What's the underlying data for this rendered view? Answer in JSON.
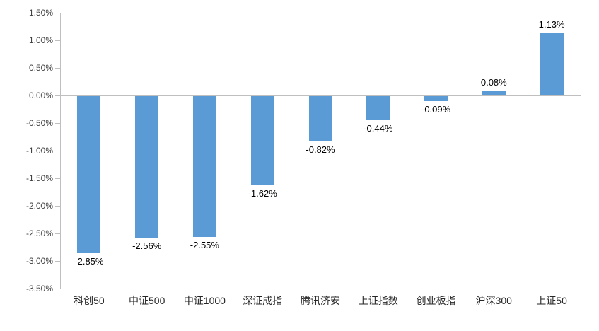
{
  "chart_data": {
    "type": "bar",
    "title": "",
    "xlabel": "",
    "ylabel": "",
    "categories": [
      "科创50",
      "中证500",
      "中证1000",
      "深证成指",
      "腾讯济安",
      "上证指数",
      "创业板指",
      "沪深300",
      "上证50"
    ],
    "values": [
      -2.85,
      -2.56,
      -2.55,
      -1.62,
      -0.82,
      -0.44,
      -0.09,
      0.08,
      1.13
    ],
    "data_labels": [
      "-2.85%",
      "-2.56%",
      "-2.55%",
      "-1.62%",
      "-0.82%",
      "-0.44%",
      "-0.09%",
      "0.08%",
      "1.13%"
    ],
    "y_tick_labels": [
      "1.50%",
      "1.00%",
      "0.50%",
      "0.00%",
      "-0.50%",
      "-1.00%",
      "-1.50%",
      "-2.00%",
      "-2.50%",
      "-3.00%",
      "-3.50%"
    ],
    "y_tick_values": [
      1.5,
      1.0,
      0.5,
      0.0,
      -0.5,
      -1.0,
      -1.5,
      -2.0,
      -2.5,
      -3.0,
      -3.5
    ],
    "ylim": [
      -3.5,
      1.5
    ],
    "grid": false,
    "legend_position": "none",
    "colors": {
      "bar": "#5B9BD5",
      "axis_line": "#BFBFBF",
      "tick_text": "#404040",
      "data_label_text": "#000000",
      "category_text": "#262626",
      "background": "#FFFFFF"
    }
  }
}
